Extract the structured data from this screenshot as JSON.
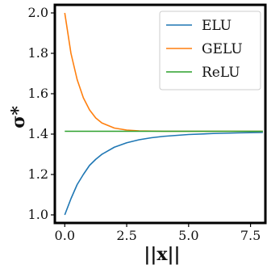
{
  "chart_data": {
    "type": "line",
    "title": "",
    "xlabel": "||x||",
    "ylabel": "σ*",
    "xlim": [
      -0.4,
      8.1
    ],
    "ylim": [
      0.96,
      2.04
    ],
    "xticks": [
      {
        "value": 0.0,
        "label": "0.0"
      },
      {
        "value": 2.5,
        "label": "2.5"
      },
      {
        "value": 5.0,
        "label": "5.0"
      },
      {
        "value": 7.5,
        "label": "7.5"
      }
    ],
    "yticks": [
      {
        "value": 1.0,
        "label": "1.0"
      },
      {
        "value": 1.2,
        "label": "1.2"
      },
      {
        "value": 1.4,
        "label": "1.4"
      },
      {
        "value": 1.6,
        "label": "1.6"
      },
      {
        "value": 1.8,
        "label": "1.8"
      },
      {
        "value": 2.0,
        "label": "2.0"
      }
    ],
    "grid": false,
    "legend_position": "top-right",
    "x": [
      0.0,
      0.25,
      0.5,
      0.75,
      1.0,
      1.25,
      1.5,
      2.0,
      2.5,
      3.0,
      3.5,
      4.0,
      5.0,
      6.0,
      7.0,
      8.0
    ],
    "series": [
      {
        "name": "ELU",
        "color": "#1f77b4",
        "values": [
          1.0,
          1.08,
          1.15,
          1.2,
          1.245,
          1.275,
          1.3,
          1.335,
          1.357,
          1.372,
          1.382,
          1.389,
          1.398,
          1.403,
          1.406,
          1.408
        ]
      },
      {
        "name": "GELU",
        "color": "#ff7f0e",
        "values": [
          2.0,
          1.8,
          1.67,
          1.58,
          1.52,
          1.48,
          1.455,
          1.43,
          1.42,
          1.416,
          1.415,
          1.414,
          1.414,
          1.414,
          1.414,
          1.414
        ]
      },
      {
        "name": "ReLU",
        "color": "#2ca02c",
        "values": [
          1.414,
          1.414,
          1.414,
          1.414,
          1.414,
          1.414,
          1.414,
          1.414,
          1.414,
          1.414,
          1.414,
          1.414,
          1.414,
          1.414,
          1.414,
          1.414
        ]
      }
    ]
  }
}
